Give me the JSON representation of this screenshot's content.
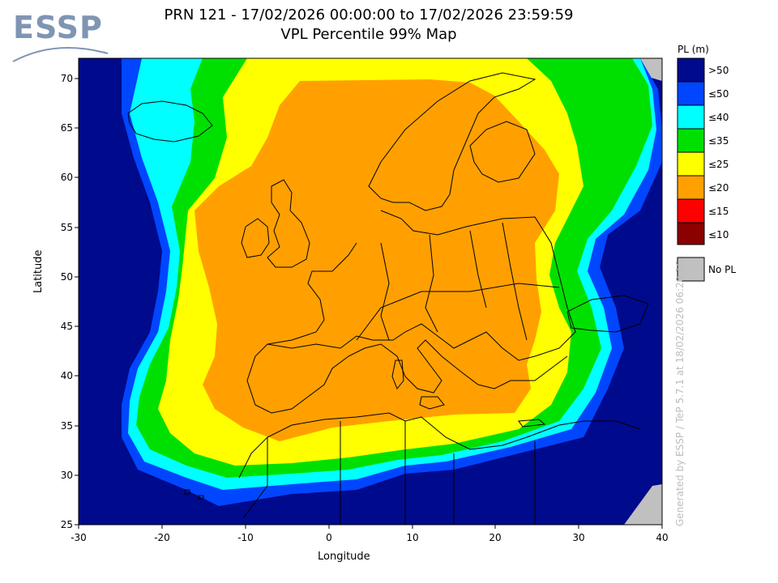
{
  "logo": {
    "text": "ESSP"
  },
  "title": {
    "line1": "PRN 121 - 17/02/2026 00:00:00 to 17/02/2026 23:59:59",
    "line2": "VPL Percentile 99% Map"
  },
  "axes": {
    "xlabel": "Longitude",
    "ylabel": "Latitude",
    "xticks": [
      "-30",
      "-20",
      "-10",
      "0",
      "10",
      "20",
      "30",
      "40"
    ],
    "yticks": [
      "70",
      "65",
      "60",
      "55",
      "50",
      "45",
      "40",
      "35",
      "30",
      "25"
    ],
    "xlim": [
      -30,
      40
    ],
    "ylim": [
      25,
      72
    ]
  },
  "legend": {
    "title": "PL (m)",
    "items": [
      {
        "label": ">50",
        "color": "#000a8c"
      },
      {
        "label": "≤50",
        "color": "#0046ff"
      },
      {
        "label": "≤40",
        "color": "#00ffff"
      },
      {
        "label": "≤35",
        "color": "#00e000"
      },
      {
        "label": "≤25",
        "color": "#ffff00"
      },
      {
        "label": "≤20",
        "color": "#ffa000"
      },
      {
        "label": "≤15",
        "color": "#ff0000"
      },
      {
        "label": "≤10",
        "color": "#8b0000"
      }
    ],
    "no_pl": {
      "label": "No PL",
      "color": "#c0c0c0"
    }
  },
  "credit": "Generated by ESSP / TeP 5.7.1 at 18/02/2026 06:20:16"
}
